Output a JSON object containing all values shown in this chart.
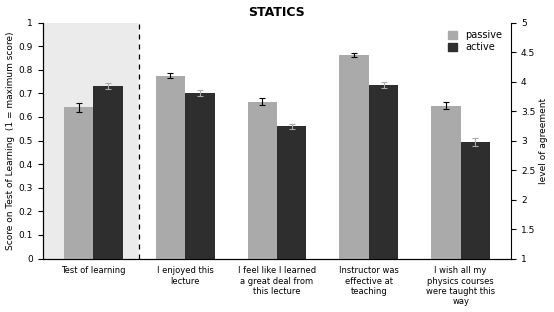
{
  "title": "STATICS",
  "categories": [
    "Test of learning",
    "I enjoyed this\nlecture",
    "I feel like I learned\na great deal from\nthis lecture",
    "Instructor was\neffective at\nteaching",
    "I wish all my\nphysics courses\nwere taught this\nway"
  ],
  "passive_values": [
    0.641,
    0.775,
    0.665,
    0.862,
    0.648
  ],
  "active_values": [
    0.73,
    0.7,
    0.56,
    0.735,
    0.493
  ],
  "passive_errors": [
    0.018,
    0.012,
    0.015,
    0.01,
    0.015
  ],
  "active_errors": [
    0.012,
    0.013,
    0.01,
    0.012,
    0.018
  ],
  "passive_color": "#aaaaaa",
  "active_color": "#2e2e2e",
  "ylabel_left": "Score on Test of Learning  (1 = maximum score)",
  "ylabel_right": "level of agreement",
  "ylim_left": [
    0,
    1.0
  ],
  "ylim_right": [
    1,
    5
  ],
  "yticks_left": [
    0,
    0.1,
    0.2,
    0.3,
    0.4,
    0.5,
    0.6,
    0.7,
    0.8,
    0.9,
    1
  ],
  "yticks_right": [
    1,
    1.5,
    2,
    2.5,
    3,
    3.5,
    4,
    4.5,
    5
  ],
  "bar_width": 0.32,
  "legend_labels": [
    "passive",
    "active"
  ],
  "shade_color": "#ebebeb",
  "figsize": [
    5.54,
    3.12
  ],
  "dpi": 100
}
